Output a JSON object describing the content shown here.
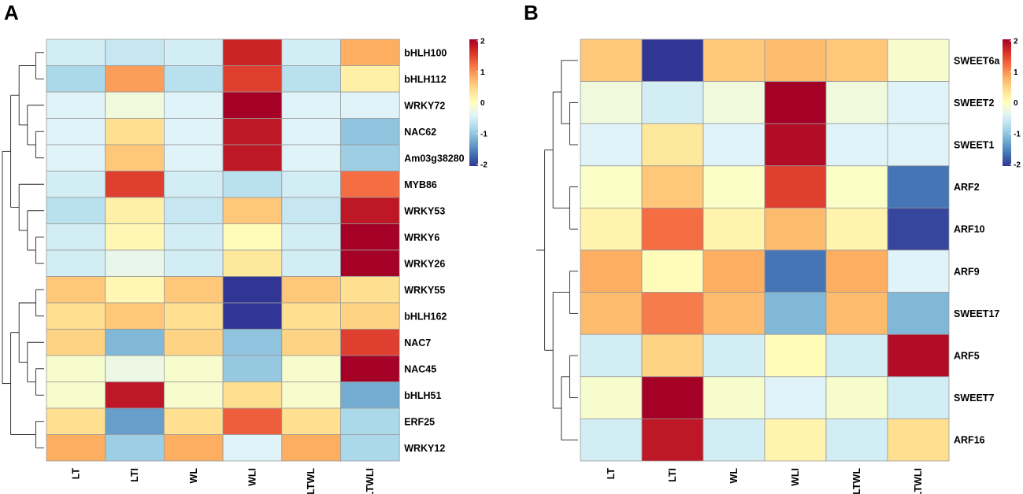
{
  "colors": {
    "scale": [
      "#313695",
      "#4575b4",
      "#74add1",
      "#abd9e9",
      "#e0f3f8",
      "#ffffbf",
      "#fee090",
      "#fdae61",
      "#f46d43",
      "#d73027",
      "#a50026"
    ],
    "grid": "#9a9a9a",
    "dendrogram": "#222222"
  },
  "chart_data": [
    {
      "panel": "A",
      "type": "heatmap",
      "columns": [
        "LT",
        "LTI",
        "WL",
        "WLI",
        "LTWL",
        "LTWLI"
      ],
      "rows": [
        "bHLH100",
        "bHLH112",
        "WRKY72",
        "NAC62",
        "Am03g38280",
        "MYB86",
        "WRKY53",
        "WRKY6",
        "WRKY26",
        "WRKY55",
        "bHLH162",
        "NAC7",
        "NAC45",
        "bHLH51",
        "ERF25",
        "WRKY12"
      ],
      "values": [
        [
          -0.5,
          -0.6,
          -0.5,
          1.7,
          -0.5,
          0.8
        ],
        [
          -0.8,
          0.9,
          -0.7,
          1.5,
          -0.7,
          0.2
        ],
        [
          -0.4,
          -0.2,
          -0.4,
          2.0,
          -0.4,
          -0.4
        ],
        [
          -0.4,
          0.4,
          -0.4,
          1.8,
          -0.4,
          -1.0
        ],
        [
          -0.4,
          0.6,
          -0.4,
          1.8,
          -0.4,
          -0.9
        ],
        [
          -0.5,
          1.5,
          -0.5,
          -0.7,
          -0.5,
          1.2
        ],
        [
          -0.7,
          0.2,
          -0.6,
          0.6,
          -0.6,
          1.8
        ],
        [
          -0.5,
          0.1,
          -0.5,
          0.05,
          -0.5,
          2.0
        ],
        [
          -0.5,
          -0.3,
          -0.5,
          0.3,
          -0.5,
          2.0
        ],
        [
          0.6,
          0.1,
          0.6,
          -2.0,
          0.6,
          0.4
        ],
        [
          0.4,
          0.6,
          0.4,
          -2.0,
          0.4,
          0.5
        ],
        [
          0.5,
          -1.1,
          0.5,
          -1.0,
          0.5,
          1.5
        ],
        [
          -0.1,
          -0.25,
          -0.1,
          -0.95,
          -0.1,
          2.0
        ],
        [
          -0.1,
          1.8,
          -0.1,
          0.4,
          -0.1,
          -1.2
        ],
        [
          0.4,
          -1.3,
          0.4,
          1.3,
          0.4,
          -0.8
        ],
        [
          0.8,
          -0.9,
          0.8,
          -0.4,
          0.8,
          -0.8
        ]
      ],
      "legend": {
        "ticks": [
          "2",
          "1",
          "0",
          "-1",
          "-2"
        ],
        "range": [
          -2,
          2
        ]
      }
    },
    {
      "panel": "B",
      "type": "heatmap",
      "columns": [
        "LT",
        "LTI",
        "WL",
        "WLI",
        "LTWL",
        "LTWLI"
      ],
      "rows": [
        "SWEET6a",
        "SWEET2",
        "SWEET1",
        "ARF2",
        "ARF10",
        "ARF9",
        "SWEET17",
        "ARF5",
        "SWEET7",
        "ARF16"
      ],
      "values": [
        [
          0.6,
          -2.0,
          0.6,
          0.7,
          0.6,
          -0.1
        ],
        [
          -0.2,
          -0.5,
          -0.2,
          2.0,
          -0.2,
          -0.4
        ],
        [
          -0.4,
          0.3,
          -0.4,
          1.9,
          -0.4,
          -0.4
        ],
        [
          -0.05,
          0.6,
          -0.05,
          1.5,
          -0.05,
          -1.6
        ],
        [
          0.15,
          1.2,
          0.15,
          0.7,
          0.15,
          -1.9
        ],
        [
          0.8,
          0.05,
          0.8,
          -1.6,
          0.8,
          -0.4
        ],
        [
          0.7,
          1.1,
          0.7,
          -1.1,
          0.7,
          -1.1
        ],
        [
          -0.5,
          0.5,
          -0.5,
          0.05,
          -0.5,
          1.9
        ],
        [
          -0.1,
          2.0,
          -0.1,
          -0.4,
          -0.1,
          -0.5
        ],
        [
          -0.5,
          1.8,
          -0.5,
          0.15,
          -0.5,
          0.4
        ]
      ],
      "legend": {
        "ticks": [
          "2",
          "1",
          "0",
          "-1",
          "-2"
        ],
        "range": [
          -2,
          2
        ]
      }
    }
  ]
}
